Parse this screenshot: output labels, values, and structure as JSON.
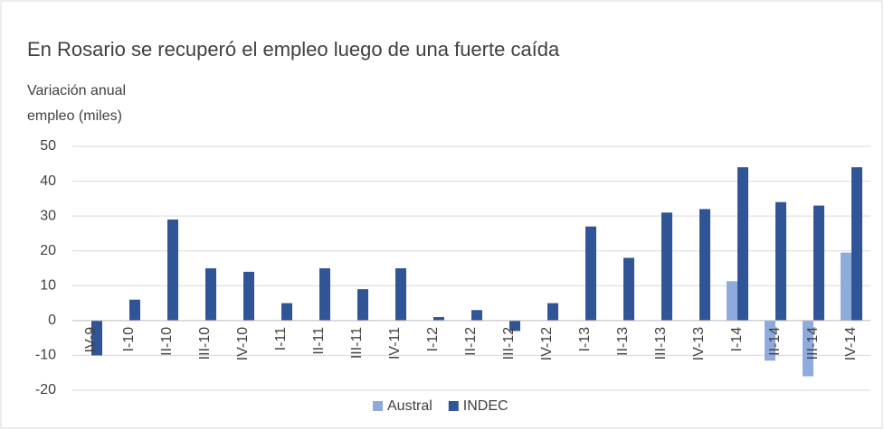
{
  "chart_data": {
    "type": "bar",
    "title": "En Rosario se recuperó el empleo luego de una fuerte caída",
    "y_label": [
      "Variación anual",
      "empleo (miles)"
    ],
    "categories": [
      "IV-9",
      "I-10",
      "II-10",
      "III-10",
      "IV-10",
      "I-11",
      "II-11",
      "III-11",
      "IV-11",
      "I-12",
      "II-12",
      "III-12",
      "IV-12",
      "I-13",
      "II-13",
      "III-13",
      "IV-13",
      "I-14",
      "II-14",
      "III-14",
      "IV-14"
    ],
    "series": [
      {
        "name": "Austral",
        "color": "#8faadc",
        "values": [
          null,
          null,
          null,
          null,
          null,
          null,
          null,
          null,
          null,
          null,
          null,
          null,
          null,
          null,
          null,
          null,
          null,
          11.3,
          -11.5,
          -16,
          19.5
        ]
      },
      {
        "name": "INDEC",
        "color": "#2f5597",
        "values": [
          -10,
          6,
          29,
          15,
          14,
          5,
          15,
          9,
          15,
          1,
          3,
          -3,
          5,
          27,
          18,
          31,
          32,
          44,
          34,
          33,
          44
        ]
      }
    ],
    "ylim": [
      -20,
      50
    ],
    "yticks": [
      -20,
      -10,
      0,
      10,
      20,
      30,
      40,
      50
    ],
    "grid": true,
    "legend": "bottom"
  }
}
